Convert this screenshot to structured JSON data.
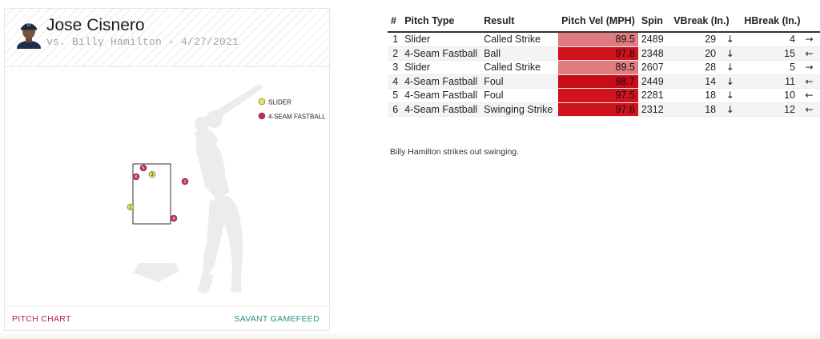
{
  "player_card": {
    "pitcher_name": "Jose Cisnero",
    "matchup": "vs. Billy Hamilton - 4/27/2021",
    "legend": [
      {
        "label": "SLIDER",
        "color": "#e8e357"
      },
      {
        "label": "4-SEAM FASTBALL",
        "color": "#c8275a"
      }
    ],
    "pitches": [
      {
        "number": "1",
        "type": "slider"
      },
      {
        "number": "2",
        "type": "fastball"
      },
      {
        "number": "3",
        "type": "slider"
      },
      {
        "number": "4",
        "type": "fastball"
      },
      {
        "number": "5",
        "type": "fastball"
      },
      {
        "number": "6",
        "type": "fastball"
      }
    ],
    "footer": {
      "pitch_chart": "PITCH CHART",
      "gamefeed": "SAVANT GAMEFEED"
    }
  },
  "table": {
    "headers": [
      "#",
      "Pitch Type",
      "Result",
      "Pitch Vel (MPH)",
      "Spin",
      "VBreak (In.)",
      "HBreak (In.)"
    ],
    "rows": [
      {
        "num": "1",
        "type": "Slider",
        "result": "Called Strike",
        "vel": "89.5",
        "spin": "2489",
        "vbreak": "29",
        "varrow": "↓",
        "hbreak": "4",
        "harrow": "→",
        "velcolor": "#e07b7f"
      },
      {
        "num": "2",
        "type": "4-Seam Fastball",
        "result": "Ball",
        "vel": "97.8",
        "spin": "2348",
        "vbreak": "20",
        "varrow": "↓",
        "hbreak": "15",
        "harrow": "←",
        "velcolor": "#d0111c"
      },
      {
        "num": "3",
        "type": "Slider",
        "result": "Called Strike",
        "vel": "89.5",
        "spin": "2607",
        "vbreak": "28",
        "varrow": "↓",
        "hbreak": "5",
        "harrow": "→",
        "velcolor": "#e07b7f"
      },
      {
        "num": "4",
        "type": "4-Seam Fastball",
        "result": "Foul",
        "vel": "98.7",
        "spin": "2449",
        "vbreak": "14",
        "varrow": "↓",
        "hbreak": "11",
        "harrow": "←",
        "velcolor": "#c90d18"
      },
      {
        "num": "5",
        "type": "4-Seam Fastball",
        "result": "Foul",
        "vel": "97.5",
        "spin": "2281",
        "vbreak": "18",
        "varrow": "↓",
        "hbreak": "10",
        "harrow": "←",
        "velcolor": "#d2131e"
      },
      {
        "num": "6",
        "type": "4-Seam Fastball",
        "result": "Swinging Strike",
        "vel": "97.6",
        "spin": "2312",
        "vbreak": "18",
        "varrow": "↓",
        "hbreak": "12",
        "harrow": "←",
        "velcolor": "#d2121d"
      }
    ]
  },
  "summary": "Billy Hamilton strikes out swinging."
}
